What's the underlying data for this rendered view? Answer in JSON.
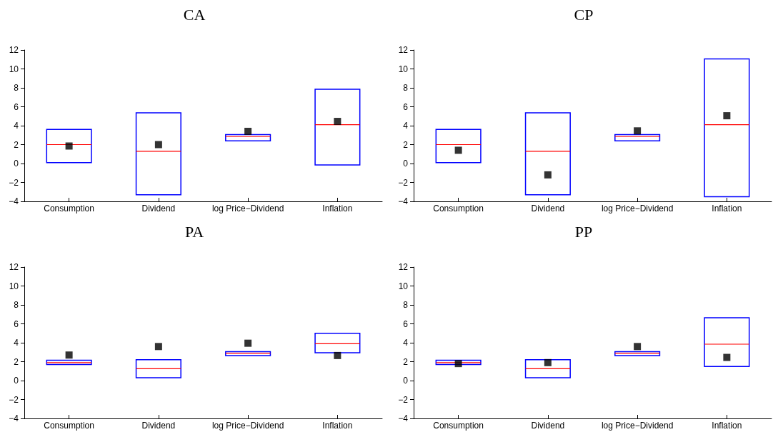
{
  "chart_data": [
    {
      "type": "box",
      "title": "CA",
      "categories": [
        "Consumption",
        "Dividend",
        "log Price−Dividend",
        "Inflation"
      ],
      "ylim": [
        -4,
        12
      ],
      "yticks": [
        -4,
        -2,
        0,
        2,
        4,
        6,
        8,
        10,
        12
      ],
      "grid": false,
      "marker": "square",
      "series": [
        {
          "color": "#0000ff",
          "boxes": [
            {
              "low": 0.1,
              "q1": 0.1,
              "median": 2.0,
              "q3": 3.6,
              "high": 3.6
            },
            {
              "low": -3.3,
              "q1": -3.3,
              "median": 1.3,
              "q3": 5.35,
              "high": 5.35
            },
            {
              "low": 2.4,
              "q1": 2.4,
              "median": 2.85,
              "q3": 3.05,
              "high": 3.05
            },
            {
              "low": -0.15,
              "q1": -0.15,
              "median": 4.1,
              "q3": 7.85,
              "high": 7.85
            }
          ]
        },
        {
          "type": "scatter",
          "color": "#000000",
          "x": [
            "Consumption",
            "Dividend",
            "log Price−Dividend",
            "Inflation"
          ],
          "values": [
            1.85,
            2.0,
            3.4,
            4.45
          ]
        }
      ]
    },
    {
      "type": "box",
      "title": "CP",
      "categories": [
        "Consumption",
        "Dividend",
        "log Price−Dividend",
        "Inflation"
      ],
      "ylim": [
        -4,
        12
      ],
      "yticks": [
        -4,
        -2,
        0,
        2,
        4,
        6,
        8,
        10,
        12
      ],
      "grid": false,
      "marker": "square",
      "series": [
        {
          "color": "#0000ff",
          "boxes": [
            {
              "low": 0.1,
              "q1": 0.1,
              "median": 2.0,
              "q3": 3.6,
              "high": 3.6
            },
            {
              "low": -3.3,
              "q1": -3.3,
              "median": 1.3,
              "q3": 5.35,
              "high": 5.35
            },
            {
              "low": 2.4,
              "q1": 2.4,
              "median": 2.85,
              "q3": 3.05,
              "high": 3.05
            },
            {
              "low": -3.5,
              "q1": -3.5,
              "median": 4.1,
              "q3": 11.05,
              "high": 11.05
            }
          ]
        },
        {
          "type": "scatter",
          "color": "#000000",
          "x": [
            "Consumption",
            "Dividend",
            "log Price−Dividend",
            "Inflation"
          ],
          "values": [
            1.4,
            -1.2,
            3.45,
            5.05
          ]
        }
      ]
    },
    {
      "type": "box",
      "title": "PA",
      "categories": [
        "Consumption",
        "Dividend",
        "log Price−Dividend",
        "Inflation"
      ],
      "ylim": [
        -4,
        12
      ],
      "yticks": [
        -4,
        -2,
        0,
        2,
        4,
        6,
        8,
        10,
        12
      ],
      "grid": false,
      "marker": "square",
      "series": [
        {
          "color": "#0000ff",
          "boxes": [
            {
              "low": 1.7,
              "q1": 1.7,
              "median": 1.9,
              "q3": 2.15,
              "high": 2.15
            },
            {
              "low": 0.3,
              "q1": 0.3,
              "median": 1.25,
              "q3": 2.2,
              "high": 2.2
            },
            {
              "low": 2.65,
              "q1": 2.65,
              "median": 2.9,
              "q3": 3.05,
              "high": 3.05
            },
            {
              "low": 2.95,
              "q1": 2.95,
              "median": 3.9,
              "q3": 5.0,
              "high": 5.0
            }
          ]
        },
        {
          "type": "scatter",
          "color": "#000000",
          "x": [
            "Consumption",
            "Dividend",
            "log Price−Dividend",
            "Inflation"
          ],
          "values": [
            2.7,
            3.6,
            3.95,
            2.65
          ]
        }
      ]
    },
    {
      "type": "box",
      "title": "PP",
      "categories": [
        "Consumption",
        "Dividend",
        "log Price−Dividend",
        "Inflation"
      ],
      "ylim": [
        -4,
        12
      ],
      "yticks": [
        -4,
        -2,
        0,
        2,
        4,
        6,
        8,
        10,
        12
      ],
      "grid": false,
      "marker": "square",
      "series": [
        {
          "color": "#0000ff",
          "boxes": [
            {
              "low": 1.7,
              "q1": 1.7,
              "median": 1.9,
              "q3": 2.15,
              "high": 2.15
            },
            {
              "low": 0.3,
              "q1": 0.3,
              "median": 1.25,
              "q3": 2.2,
              "high": 2.2
            },
            {
              "low": 2.65,
              "q1": 2.65,
              "median": 2.9,
              "q3": 3.05,
              "high": 3.05
            },
            {
              "low": 1.5,
              "q1": 1.5,
              "median": 3.85,
              "q3": 6.65,
              "high": 6.65
            }
          ]
        },
        {
          "type": "scatter",
          "color": "#000000",
          "x": [
            "Consumption",
            "Dividend",
            "log Price−Dividend",
            "Inflation"
          ],
          "values": [
            1.8,
            1.9,
            3.6,
            2.45
          ]
        }
      ]
    }
  ]
}
